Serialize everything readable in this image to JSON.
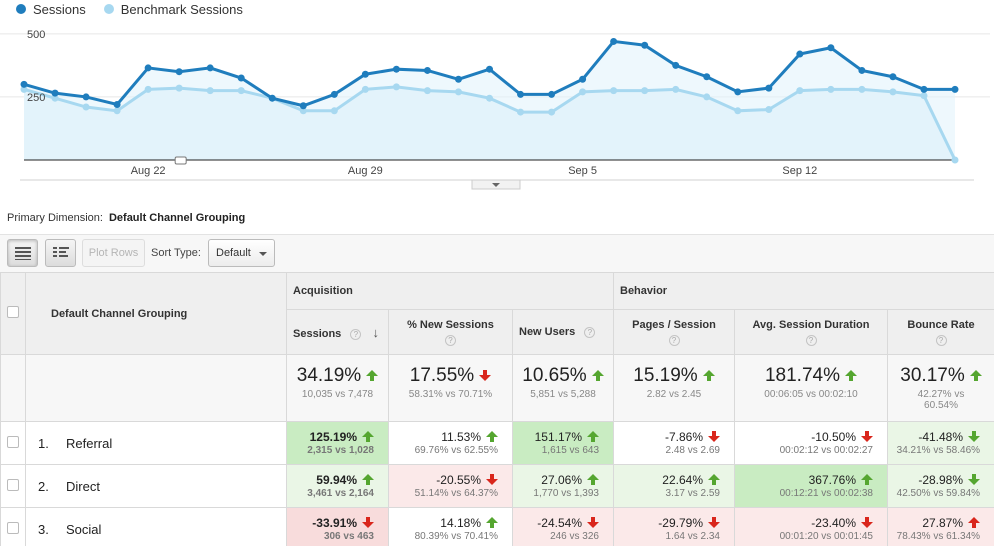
{
  "legend": {
    "sessions": "Sessions",
    "benchmark": "Benchmark Sessions"
  },
  "colors": {
    "sessions": "#1f7dbd",
    "benchmark": "#a7d8f0",
    "benchmark_fill": "#e3f3fb",
    "up": "#55a630",
    "down": "#d9261c"
  },
  "chart_data": {
    "type": "line",
    "title": "",
    "ylim": [
      0,
      500
    ],
    "yticks": [
      250,
      500
    ],
    "ytick_labels": [
      "250",
      "500"
    ],
    "x_tick_labels": [
      "Aug 22",
      "Aug 29",
      "Sep 5",
      "Sep 12"
    ],
    "x_tick_index": [
      4,
      11,
      18,
      25
    ],
    "x": [
      "Aug 18",
      "Aug 19",
      "Aug 20",
      "Aug 21",
      "Aug 22",
      "Aug 23",
      "Aug 24",
      "Aug 25",
      "Aug 26",
      "Aug 27",
      "Aug 28",
      "Aug 29",
      "Aug 30",
      "Aug 31",
      "Sep 1",
      "Sep 2",
      "Sep 3",
      "Sep 4",
      "Sep 5",
      "Sep 6",
      "Sep 7",
      "Sep 8",
      "Sep 9",
      "Sep 10",
      "Sep 11",
      "Sep 12",
      "Sep 13",
      "Sep 14",
      "Sep 15",
      "Sep 16",
      "Sep 17"
    ],
    "series": [
      {
        "name": "Sessions",
        "values": [
          300,
          265,
          250,
          220,
          365,
          350,
          365,
          325,
          245,
          215,
          260,
          340,
          360,
          355,
          320,
          360,
          260,
          260,
          320,
          470,
          455,
          375,
          330,
          270,
          285,
          420,
          445,
          355,
          330,
          280,
          280
        ]
      },
      {
        "name": "Benchmark Sessions",
        "values": [
          280,
          245,
          210,
          195,
          280,
          285,
          275,
          275,
          245,
          195,
          195,
          280,
          290,
          275,
          270,
          245,
          190,
          190,
          270,
          275,
          275,
          280,
          250,
          195,
          200,
          275,
          280,
          280,
          270,
          255,
          0
        ]
      }
    ]
  },
  "primary_dimension": {
    "label": "Primary Dimension:",
    "value": "Default Channel Grouping"
  },
  "toolbar": {
    "plot_rows": "Plot Rows",
    "sort_label": "Sort Type:",
    "sort_value": "Default"
  },
  "table": {
    "group_acquisition": "Acquisition",
    "group_behavior": "Behavior",
    "dimension_header": "Default Channel Grouping",
    "columns": [
      "Sessions",
      "% New Sessions",
      "New Users",
      "Pages / Session",
      "Avg. Session Duration",
      "Bounce Rate"
    ],
    "help_glyph": "?",
    "summary": [
      {
        "pct": "34.19%",
        "cmp": "10,035 vs 7,478",
        "dir": "up-good"
      },
      {
        "pct": "17.55%",
        "cmp": "58.31% vs 70.71%",
        "dir": "down-bad"
      },
      {
        "pct": "10.65%",
        "cmp": "5,851 vs 5,288",
        "dir": "up-good"
      },
      {
        "pct": "15.19%",
        "cmp": "2.82 vs 2.45",
        "dir": "up-good"
      },
      {
        "pct": "181.74%",
        "cmp": "00:06:05 vs 00:02:10",
        "dir": "up-good"
      },
      {
        "pct": "30.17%",
        "cmp": "42.27% vs 60.54%",
        "dir": "up-good"
      }
    ],
    "rows": [
      {
        "num": "1.",
        "name": "Referral",
        "cells": [
          {
            "pct": "125.19%",
            "cmp": "2,315 vs 1,028",
            "dir": "up-good",
            "bg": "g-strong",
            "bold": true
          },
          {
            "pct": "11.53%",
            "cmp": "69.76% vs 62.55%",
            "dir": "up-good",
            "bg": "w"
          },
          {
            "pct": "151.17%",
            "cmp": "1,615 vs 643",
            "dir": "up-good",
            "bg": "g-strong"
          },
          {
            "pct": "-7.86%",
            "cmp": "2.48 vs 2.69",
            "dir": "down-bad",
            "bg": "w"
          },
          {
            "pct": "-10.50%",
            "cmp": "00:02:12 vs 00:02:27",
            "dir": "down-bad",
            "bg": "w"
          },
          {
            "pct": "-41.48%",
            "cmp": "34.21% vs 58.46%",
            "dir": "down-good",
            "bg": "g-light"
          }
        ]
      },
      {
        "num": "2.",
        "name": "Direct",
        "cells": [
          {
            "pct": "59.94%",
            "cmp": "3,461 vs 2,164",
            "dir": "up-good",
            "bg": "g-light",
            "bold": true
          },
          {
            "pct": "-20.55%",
            "cmp": "51.14% vs 64.37%",
            "dir": "down-bad",
            "bg": "r-light"
          },
          {
            "pct": "27.06%",
            "cmp": "1,770 vs 1,393",
            "dir": "up-good",
            "bg": "g-light"
          },
          {
            "pct": "22.64%",
            "cmp": "3.17 vs 2.59",
            "dir": "up-good",
            "bg": "g-light"
          },
          {
            "pct": "367.76%",
            "cmp": "00:12:21 vs 00:02:38",
            "dir": "up-good",
            "bg": "g-strong"
          },
          {
            "pct": "-28.98%",
            "cmp": "42.50% vs 59.84%",
            "dir": "down-good",
            "bg": "g-light"
          }
        ]
      },
      {
        "num": "3.",
        "name": "Social",
        "cells": [
          {
            "pct": "-33.91%",
            "cmp": "306 vs 463",
            "dir": "down-bad",
            "bg": "r-mid",
            "bold": true
          },
          {
            "pct": "14.18%",
            "cmp": "80.39% vs 70.41%",
            "dir": "up-good",
            "bg": "w"
          },
          {
            "pct": "-24.54%",
            "cmp": "246 vs 326",
            "dir": "down-bad",
            "bg": "r-light"
          },
          {
            "pct": "-29.79%",
            "cmp": "1.64 vs 2.34",
            "dir": "down-bad",
            "bg": "r-light"
          },
          {
            "pct": "-23.40%",
            "cmp": "00:01:20 vs 00:01:45",
            "dir": "down-bad",
            "bg": "r-light"
          },
          {
            "pct": "27.87%",
            "cmp": "78.43% vs 61.34%",
            "dir": "up-bad",
            "bg": "r-light"
          }
        ]
      }
    ]
  }
}
